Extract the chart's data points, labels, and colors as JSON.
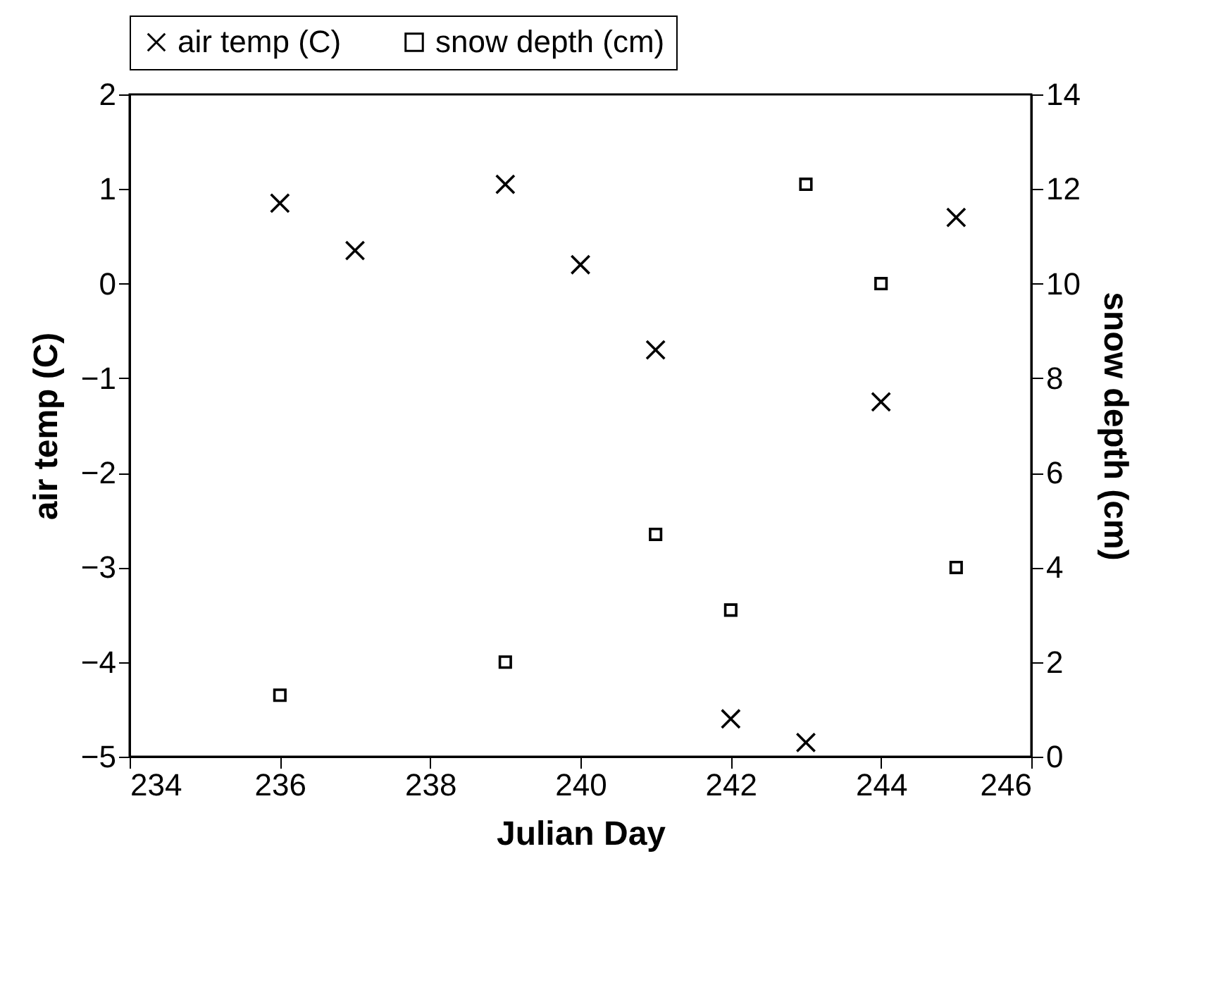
{
  "chart_data": {
    "type": "scatter",
    "xlabel": "Julian Day",
    "ylabel": "air temp (C)",
    "y2label": "snow depth (cm)",
    "xlim": [
      234,
      246
    ],
    "xticks": [
      234,
      236,
      238,
      240,
      242,
      244,
      246
    ],
    "ylim": [
      -5,
      2
    ],
    "yticks": [
      -5,
      -4,
      -3,
      -2,
      -1,
      0,
      1,
      2
    ],
    "y2lim": [
      0,
      14
    ],
    "y2ticks": [
      0,
      2,
      4,
      6,
      8,
      10,
      12,
      14
    ],
    "legend": "top",
    "grid": false,
    "series": [
      {
        "name": "air temp (C)",
        "color": "#000000",
        "marker": "cross",
        "x": [
          236,
          237,
          239,
          240,
          241,
          242,
          243,
          244,
          245
        ],
        "values": [
          0.85,
          0.35,
          1.05,
          0.2,
          -0.7,
          -4.6,
          -4.85,
          -1.25,
          0.7
        ]
      },
      {
        "name": "snow depth (cm)",
        "color": "#000000",
        "marker": "square",
        "axis": "y2",
        "x": [
          236,
          239,
          241,
          242,
          243,
          244,
          245
        ],
        "values": [
          1.3,
          2.0,
          4.7,
          3.1,
          12.1,
          10.0,
          4.0
        ]
      }
    ]
  }
}
